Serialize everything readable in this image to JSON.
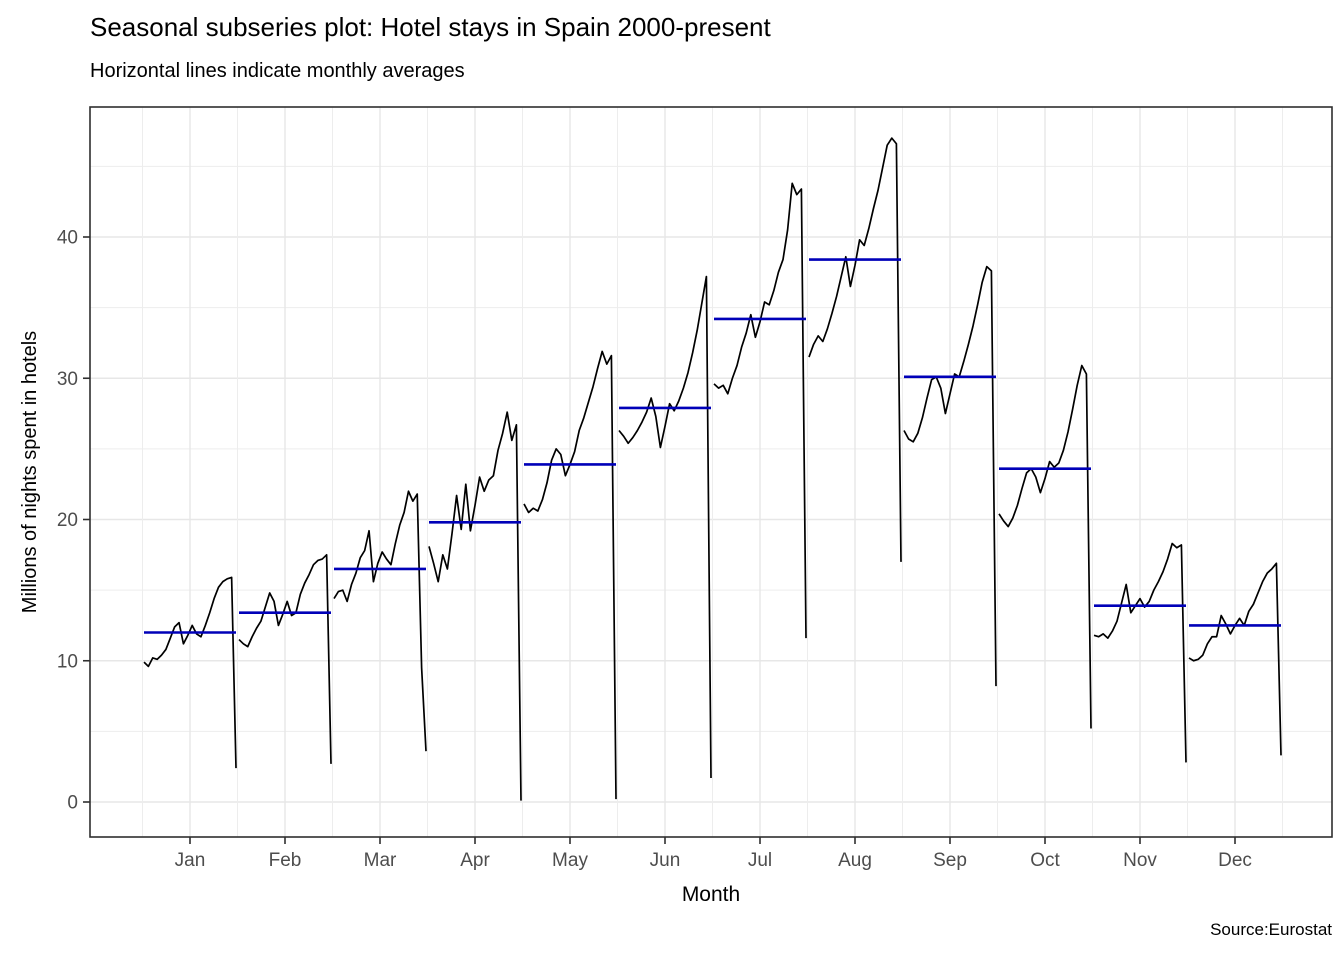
{
  "chart_data": {
    "type": "line",
    "variant": "seasonal_subseries",
    "title": "Seasonal subseries plot: Hotel stays in Spain 2000-present",
    "subtitle": "Horizontal lines indicate monthly averages",
    "xlabel": "Month",
    "ylabel": "Millions of nights spent in hotels",
    "caption": "Source:Eurostat",
    "months": [
      "Jan",
      "Feb",
      "Mar",
      "Apr",
      "May",
      "Jun",
      "Jul",
      "Aug",
      "Sep",
      "Oct",
      "Nov",
      "Dec"
    ],
    "y_ticks": [
      0,
      10,
      20,
      30,
      40
    ],
    "y_minor_ticks": [
      5,
      15,
      25,
      35,
      45
    ],
    "ylim": [
      -2.5,
      49.2
    ],
    "grid": true,
    "legend": "none",
    "mean_values": [
      12.0,
      13.4,
      16.5,
      19.8,
      23.9,
      27.9,
      34.2,
      38.4,
      30.1,
      23.6,
      13.9,
      12.5
    ],
    "series": [
      {
        "month": "Jan",
        "start_year": 2000,
        "mean": 12.0,
        "values": [
          9.9,
          9.6,
          10.2,
          10.1,
          10.4,
          10.8,
          11.6,
          12.4,
          12.7,
          11.2,
          11.8,
          12.5,
          11.9,
          11.7,
          12.5,
          13.4,
          14.4,
          15.2,
          15.6,
          15.8,
          15.9,
          2.4
        ]
      },
      {
        "month": "Feb",
        "start_year": 2000,
        "mean": 13.4,
        "values": [
          11.5,
          11.2,
          11.0,
          11.7,
          12.3,
          12.8,
          13.8,
          14.8,
          14.2,
          12.5,
          13.3,
          14.2,
          13.2,
          13.4,
          14.7,
          15.5,
          16.1,
          16.8,
          17.1,
          17.2,
          17.5,
          2.7
        ]
      },
      {
        "month": "Mar",
        "start_year": 2000,
        "mean": 16.5,
        "values": [
          14.4,
          14.9,
          15.0,
          14.2,
          15.4,
          16.2,
          17.3,
          17.8,
          19.2,
          15.6,
          16.9,
          17.7,
          17.2,
          16.8,
          18.3,
          19.6,
          20.5,
          22.0,
          21.3,
          21.8,
          9.5,
          3.6
        ]
      },
      {
        "month": "Apr",
        "start_year": 2000,
        "mean": 19.8,
        "values": [
          18.1,
          16.9,
          15.6,
          17.5,
          16.5,
          19.0,
          21.7,
          19.3,
          22.5,
          19.2,
          21.0,
          23.0,
          22.0,
          22.8,
          23.1,
          24.9,
          26.1,
          27.6,
          25.6,
          26.7,
          0.1
        ]
      },
      {
        "month": "May",
        "start_year": 2000,
        "mean": 23.9,
        "values": [
          21.1,
          20.5,
          20.8,
          20.6,
          21.4,
          22.6,
          24.2,
          25.0,
          24.6,
          23.1,
          23.9,
          24.8,
          26.3,
          27.2,
          28.3,
          29.4,
          30.7,
          31.9,
          31.0,
          31.6,
          0.2
        ]
      },
      {
        "month": "Jun",
        "start_year": 2000,
        "mean": 27.9,
        "values": [
          26.3,
          25.9,
          25.4,
          25.8,
          26.3,
          26.9,
          27.6,
          28.6,
          27.3,
          25.1,
          26.6,
          28.2,
          27.7,
          28.4,
          29.3,
          30.4,
          31.8,
          33.4,
          35.3,
          37.2,
          1.7
        ]
      },
      {
        "month": "Jul",
        "start_year": 2000,
        "mean": 34.2,
        "values": [
          29.6,
          29.3,
          29.5,
          28.9,
          30.0,
          30.9,
          32.2,
          33.2,
          34.5,
          32.9,
          34.0,
          35.4,
          35.2,
          36.2,
          37.5,
          38.4,
          40.5,
          43.8,
          43.0,
          43.4,
          11.6
        ]
      },
      {
        "month": "Aug",
        "start_year": 2000,
        "mean": 38.4,
        "values": [
          31.5,
          32.4,
          33.0,
          32.6,
          33.5,
          34.6,
          35.8,
          37.2,
          38.6,
          36.5,
          38.0,
          39.8,
          39.4,
          40.6,
          42.0,
          43.3,
          44.9,
          46.5,
          47.0,
          46.6,
          17.0
        ]
      },
      {
        "month": "Sep",
        "start_year": 2000,
        "mean": 30.1,
        "values": [
          26.3,
          25.7,
          25.5,
          26.1,
          27.2,
          28.6,
          29.9,
          30.1,
          29.3,
          27.5,
          28.9,
          30.3,
          30.1,
          31.2,
          32.4,
          33.7,
          35.2,
          36.8,
          37.9,
          37.6,
          8.2
        ]
      },
      {
        "month": "Oct",
        "start_year": 2000,
        "mean": 23.6,
        "values": [
          20.4,
          19.9,
          19.5,
          20.1,
          21.0,
          22.2,
          23.3,
          23.6,
          23.0,
          21.9,
          22.9,
          24.1,
          23.7,
          24.0,
          24.9,
          26.2,
          27.8,
          29.5,
          30.9,
          30.3,
          5.2
        ]
      },
      {
        "month": "Nov",
        "start_year": 2000,
        "mean": 13.9,
        "values": [
          11.8,
          11.7,
          11.9,
          11.6,
          12.1,
          12.8,
          14.1,
          15.4,
          13.4,
          13.9,
          14.4,
          13.8,
          14.2,
          15.0,
          15.6,
          16.3,
          17.2,
          18.3,
          18.0,
          18.2,
          2.8
        ]
      },
      {
        "month": "Dec",
        "start_year": 2000,
        "mean": 12.5,
        "values": [
          10.2,
          10.0,
          10.1,
          10.4,
          11.2,
          11.7,
          11.7,
          13.2,
          12.6,
          11.9,
          12.5,
          13.0,
          12.5,
          13.5,
          14.0,
          14.8,
          15.6,
          16.2,
          16.5,
          16.9,
          3.3
        ]
      }
    ],
    "colors": {
      "series_line": "#000000",
      "mean_line": "#0000B8",
      "grid_major": "#E7E7E7",
      "grid_minor": "#EDEDED",
      "panel_border": "#2F2F2F",
      "tick_text": "#4D4D4D",
      "background": "#FFFFFF"
    }
  }
}
